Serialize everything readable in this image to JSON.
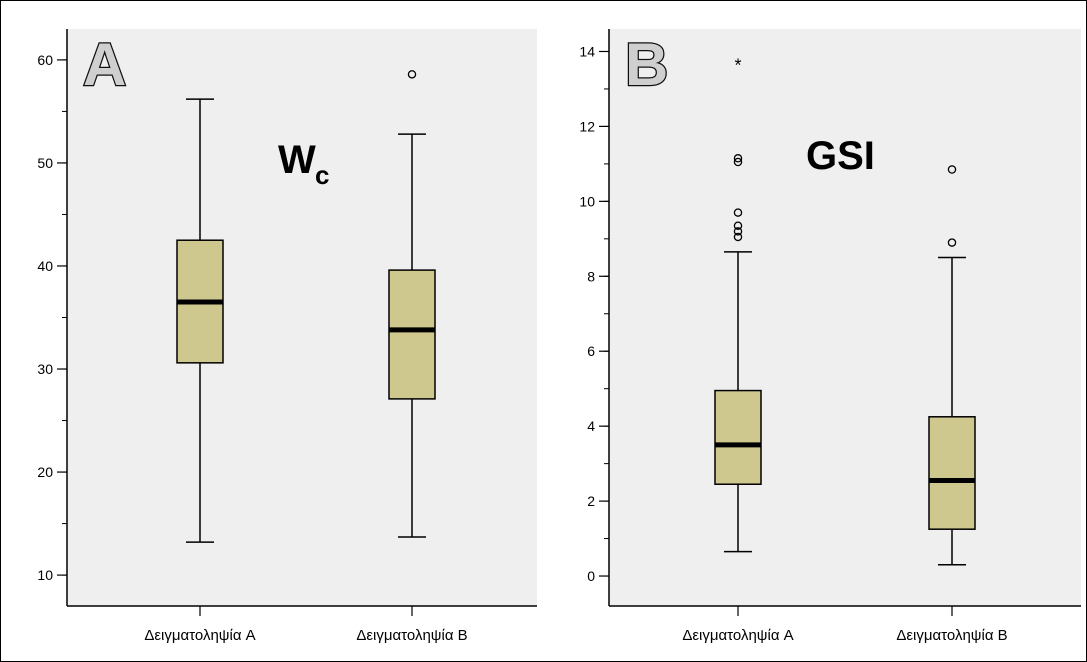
{
  "chart_data": [
    {
      "type": "box",
      "panel_letter": "A",
      "variable_label": "W",
      "variable_subscript": "c",
      "categories": [
        "Δειγματοληψία A",
        "Δειγματοληψία B"
      ],
      "ylim": [
        7,
        63
      ],
      "ticks": [
        10,
        20,
        30,
        40,
        50,
        60
      ],
      "tick_labels": [
        "10",
        "20",
        "30",
        "40",
        "50",
        "60"
      ],
      "minor_step": 5,
      "grid": false,
      "boxes": [
        {
          "category": "Δειγματοληψία A",
          "whisker_low": 13.2,
          "q1": 30.6,
          "median": 36.5,
          "q3": 42.5,
          "whisker_high": 56.2,
          "outliers": [],
          "extremes": []
        },
        {
          "category": "Δειγματοληψία B",
          "whisker_low": 13.7,
          "q1": 27.1,
          "median": 33.8,
          "q3": 39.6,
          "whisker_high": 52.8,
          "outliers": [
            58.6
          ],
          "extremes": []
        }
      ]
    },
    {
      "type": "box",
      "panel_letter": "B",
      "variable_label": "GSI",
      "variable_subscript": "",
      "categories": [
        "Δειγματοληψία A",
        "Δειγματοληψία B"
      ],
      "ylim": [
        -0.8,
        14.6
      ],
      "ticks": [
        0,
        2,
        4,
        6,
        8,
        10,
        12,
        14
      ],
      "tick_labels": [
        "0",
        "2",
        "4",
        "6",
        "8",
        "10",
        "12",
        "14"
      ],
      "minor_step": 1,
      "grid": false,
      "boxes": [
        {
          "category": "Δειγματοληψία A",
          "whisker_low": 0.65,
          "q1": 2.45,
          "median": 3.5,
          "q3": 4.95,
          "whisker_high": 8.65,
          "outliers": [
            9.05,
            9.2,
            9.35,
            9.7,
            11.05,
            11.15
          ],
          "extremes": [
            13.7
          ]
        },
        {
          "category": "Δειγματοληψία B",
          "whisker_low": 0.3,
          "q1": 1.25,
          "median": 2.55,
          "q3": 4.25,
          "whisker_high": 8.5,
          "outliers": [
            8.9,
            10.85
          ],
          "extremes": []
        }
      ]
    }
  ],
  "colors": {
    "box_fill": "#cfc88e",
    "plot_bg": "#efefef",
    "line": "#000000"
  }
}
